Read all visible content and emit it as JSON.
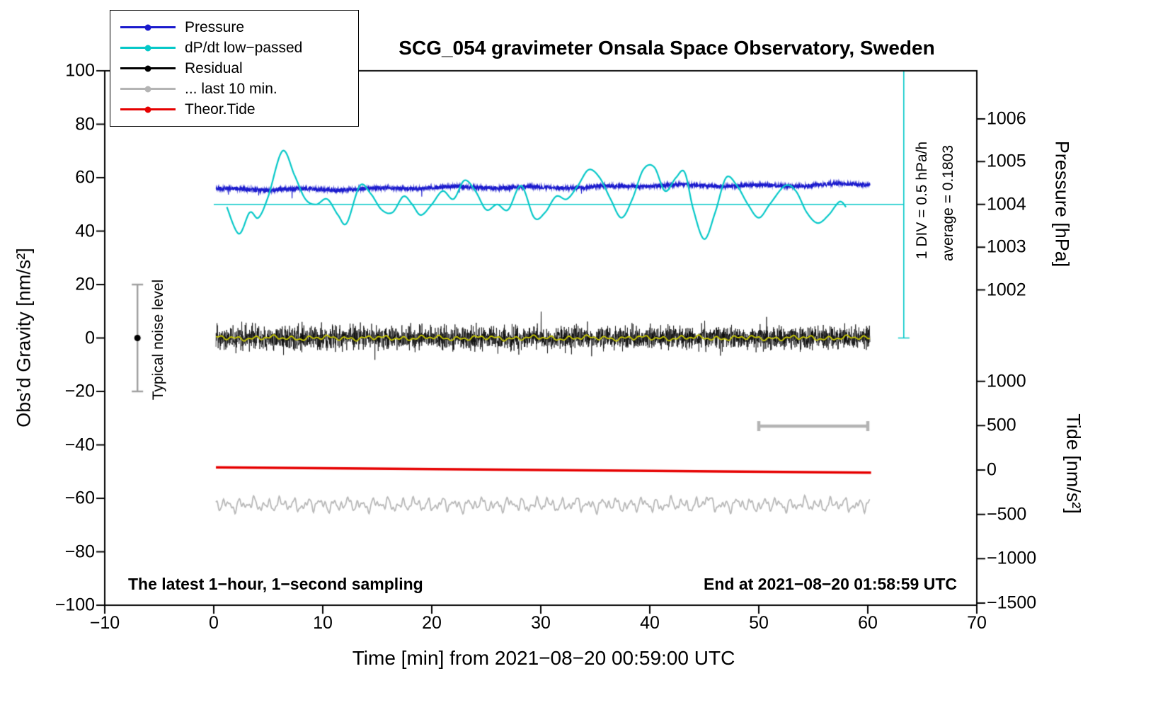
{
  "title": "SCG_054 gravimeter Onsala Space Observatory, Sweden",
  "legend": {
    "items": [
      {
        "label": "Pressure",
        "color": "#1a1acd"
      },
      {
        "label": "dP/dt low−passed",
        "color": "#06c8c8"
      },
      {
        "label": "Residual",
        "color": "#000000"
      },
      {
        "label": "... last 10 min.",
        "color": "#b4b4b4"
      },
      {
        "label": "Theor.Tide",
        "color": "#e60000"
      }
    ]
  },
  "annotations": {
    "noise_level_label": "Typical noise level",
    "div_label": "1 DIV = 0.5 hPa/h",
    "average_label": "average = 0.1803",
    "footer_left": "The latest 1−hour, 1−second sampling",
    "footer_right": "End at 2021−08−20 01:58:59 UTC"
  },
  "chart_data": {
    "type": "line",
    "title": "SCG_054 gravimeter Onsala Space Observatory, Sweden",
    "xlabel": "Time [min] from 2021−08−20 00:59:00 UTC",
    "ylabel_left": "Obs’d Gravity [nm/s²]",
    "ylabel_right_pressure": "Pressure [hPa]",
    "ylabel_right_tide": "Tide [nm/s²]",
    "xlim": [
      -10,
      70
    ],
    "xticks": [
      -10,
      0,
      10,
      20,
      30,
      40,
      50,
      60,
      70
    ],
    "ylim_left": [
      -100,
      100
    ],
    "yticks_left": [
      100,
      80,
      60,
      40,
      20,
      0,
      -20,
      -40,
      -60,
      -80,
      -100
    ],
    "grid": false,
    "legend_position": "upper-left",
    "pressure_axis": {
      "ticks": [
        1006,
        1005,
        1004,
        1003,
        1002
      ],
      "hpa_ref": 1004,
      "left_at_ref": 50,
      "left_units_per_hpa": 16
    },
    "tide_axis": {
      "ticks": [
        1000,
        500,
        0,
        -500,
        -1000,
        -1500
      ],
      "tide0_left_units": -49.4,
      "left_units_per_500": 16.6
    },
    "series": [
      {
        "name": "Pressure",
        "kind": "pressure",
        "color": "#1a1acd",
        "axis": "pressure",
        "x_start": 0.2,
        "x_end": 60.2,
        "hpa_start": 1004.34,
        "hpa_end": 1004.47,
        "noise_hpa": 0.045,
        "average_dpdt_hpa_per_h": 0.1803
      },
      {
        "name": "dP/dt low−passed",
        "kind": "dpdt",
        "color": "#06c8c8",
        "axis": "left",
        "center_left_units": 50,
        "keypoints": [
          [
            1.2,
            49
          ],
          [
            2.3,
            39
          ],
          [
            3.3,
            47
          ],
          [
            4.1,
            45
          ],
          [
            5,
            53
          ],
          [
            6.3,
            70
          ],
          [
            7.4,
            61
          ],
          [
            8.4,
            52
          ],
          [
            9.4,
            50
          ],
          [
            10.4,
            52
          ],
          [
            11.4,
            46
          ],
          [
            12.2,
            43
          ],
          [
            13.4,
            57
          ],
          [
            14.4,
            54
          ],
          [
            15.4,
            48
          ],
          [
            16.4,
            47
          ],
          [
            17.4,
            53
          ],
          [
            18.2,
            50
          ],
          [
            19,
            46
          ],
          [
            20,
            50
          ],
          [
            21,
            55
          ],
          [
            22,
            52
          ],
          [
            23,
            59
          ],
          [
            24,
            55
          ],
          [
            25,
            48
          ],
          [
            26,
            50
          ],
          [
            27,
            48
          ],
          [
            28.2,
            57
          ],
          [
            29.4,
            45
          ],
          [
            30.4,
            47
          ],
          [
            31.4,
            53
          ],
          [
            32.4,
            52
          ],
          [
            33.4,
            57
          ],
          [
            34.4,
            63
          ],
          [
            35.4,
            60
          ],
          [
            36.4,
            52
          ],
          [
            37.4,
            45
          ],
          [
            38.4,
            52
          ],
          [
            39.4,
            63
          ],
          [
            40.4,
            64
          ],
          [
            41.4,
            55
          ],
          [
            42.4,
            60
          ],
          [
            43.2,
            62
          ],
          [
            44,
            48
          ],
          [
            45,
            37
          ],
          [
            46,
            47
          ],
          [
            47,
            60
          ],
          [
            48,
            57
          ],
          [
            49,
            50
          ],
          [
            50,
            45
          ],
          [
            51,
            50
          ],
          [
            52.4,
            57
          ],
          [
            53.4,
            55
          ],
          [
            54.4,
            47
          ],
          [
            55.4,
            43
          ],
          [
            56.4,
            46
          ],
          [
            57.4,
            51
          ],
          [
            58,
            49
          ]
        ]
      },
      {
        "name": "Residual",
        "kind": "residual",
        "color": "#000000",
        "axis": "left",
        "x_start": 0.2,
        "x_end": 60.2,
        "mean": 0,
        "std": 2.1
      },
      {
        "name": "Residual smoothed",
        "kind": "residual_smooth",
        "color": "#c8c800",
        "axis": "left",
        "x_start": 0.2,
        "x_end": 60.2,
        "mean": 0,
        "amplitude": 0.8
      },
      {
        "name": "Theor.Tide",
        "kind": "tide",
        "color": "#e60000",
        "axis": "tide",
        "x_start": 0.2,
        "x_end": 60.3,
        "left_start": -48.4,
        "left_end": -50.4,
        "tide_start_nms2": 30,
        "tide_end_nms2": -30
      },
      {
        "name": "... last 10 min.",
        "kind": "last10",
        "color": "#b8b8b8",
        "axis": "left",
        "x_start": 0.2,
        "x_end": 60.2,
        "mean_left_units": -62.4,
        "amplitude": 2.6
      }
    ],
    "annotations": {
      "noise_bar": {
        "x": -7,
        "y_from": -20,
        "y_to": 20,
        "dot_y": 0,
        "color": "#a0a0a0"
      },
      "scale_bar": {
        "x_from": 50,
        "x_to": 60,
        "y": -33,
        "color": "#b4b4b4"
      },
      "dpdt_ref": {
        "hline_y": 50,
        "hline_x_from": 0,
        "hline_x_to": 63.3,
        "vline_x": 63.3,
        "vline_y_from": 0,
        "vline_y_to": 100,
        "color": "#06c8c8"
      }
    }
  }
}
